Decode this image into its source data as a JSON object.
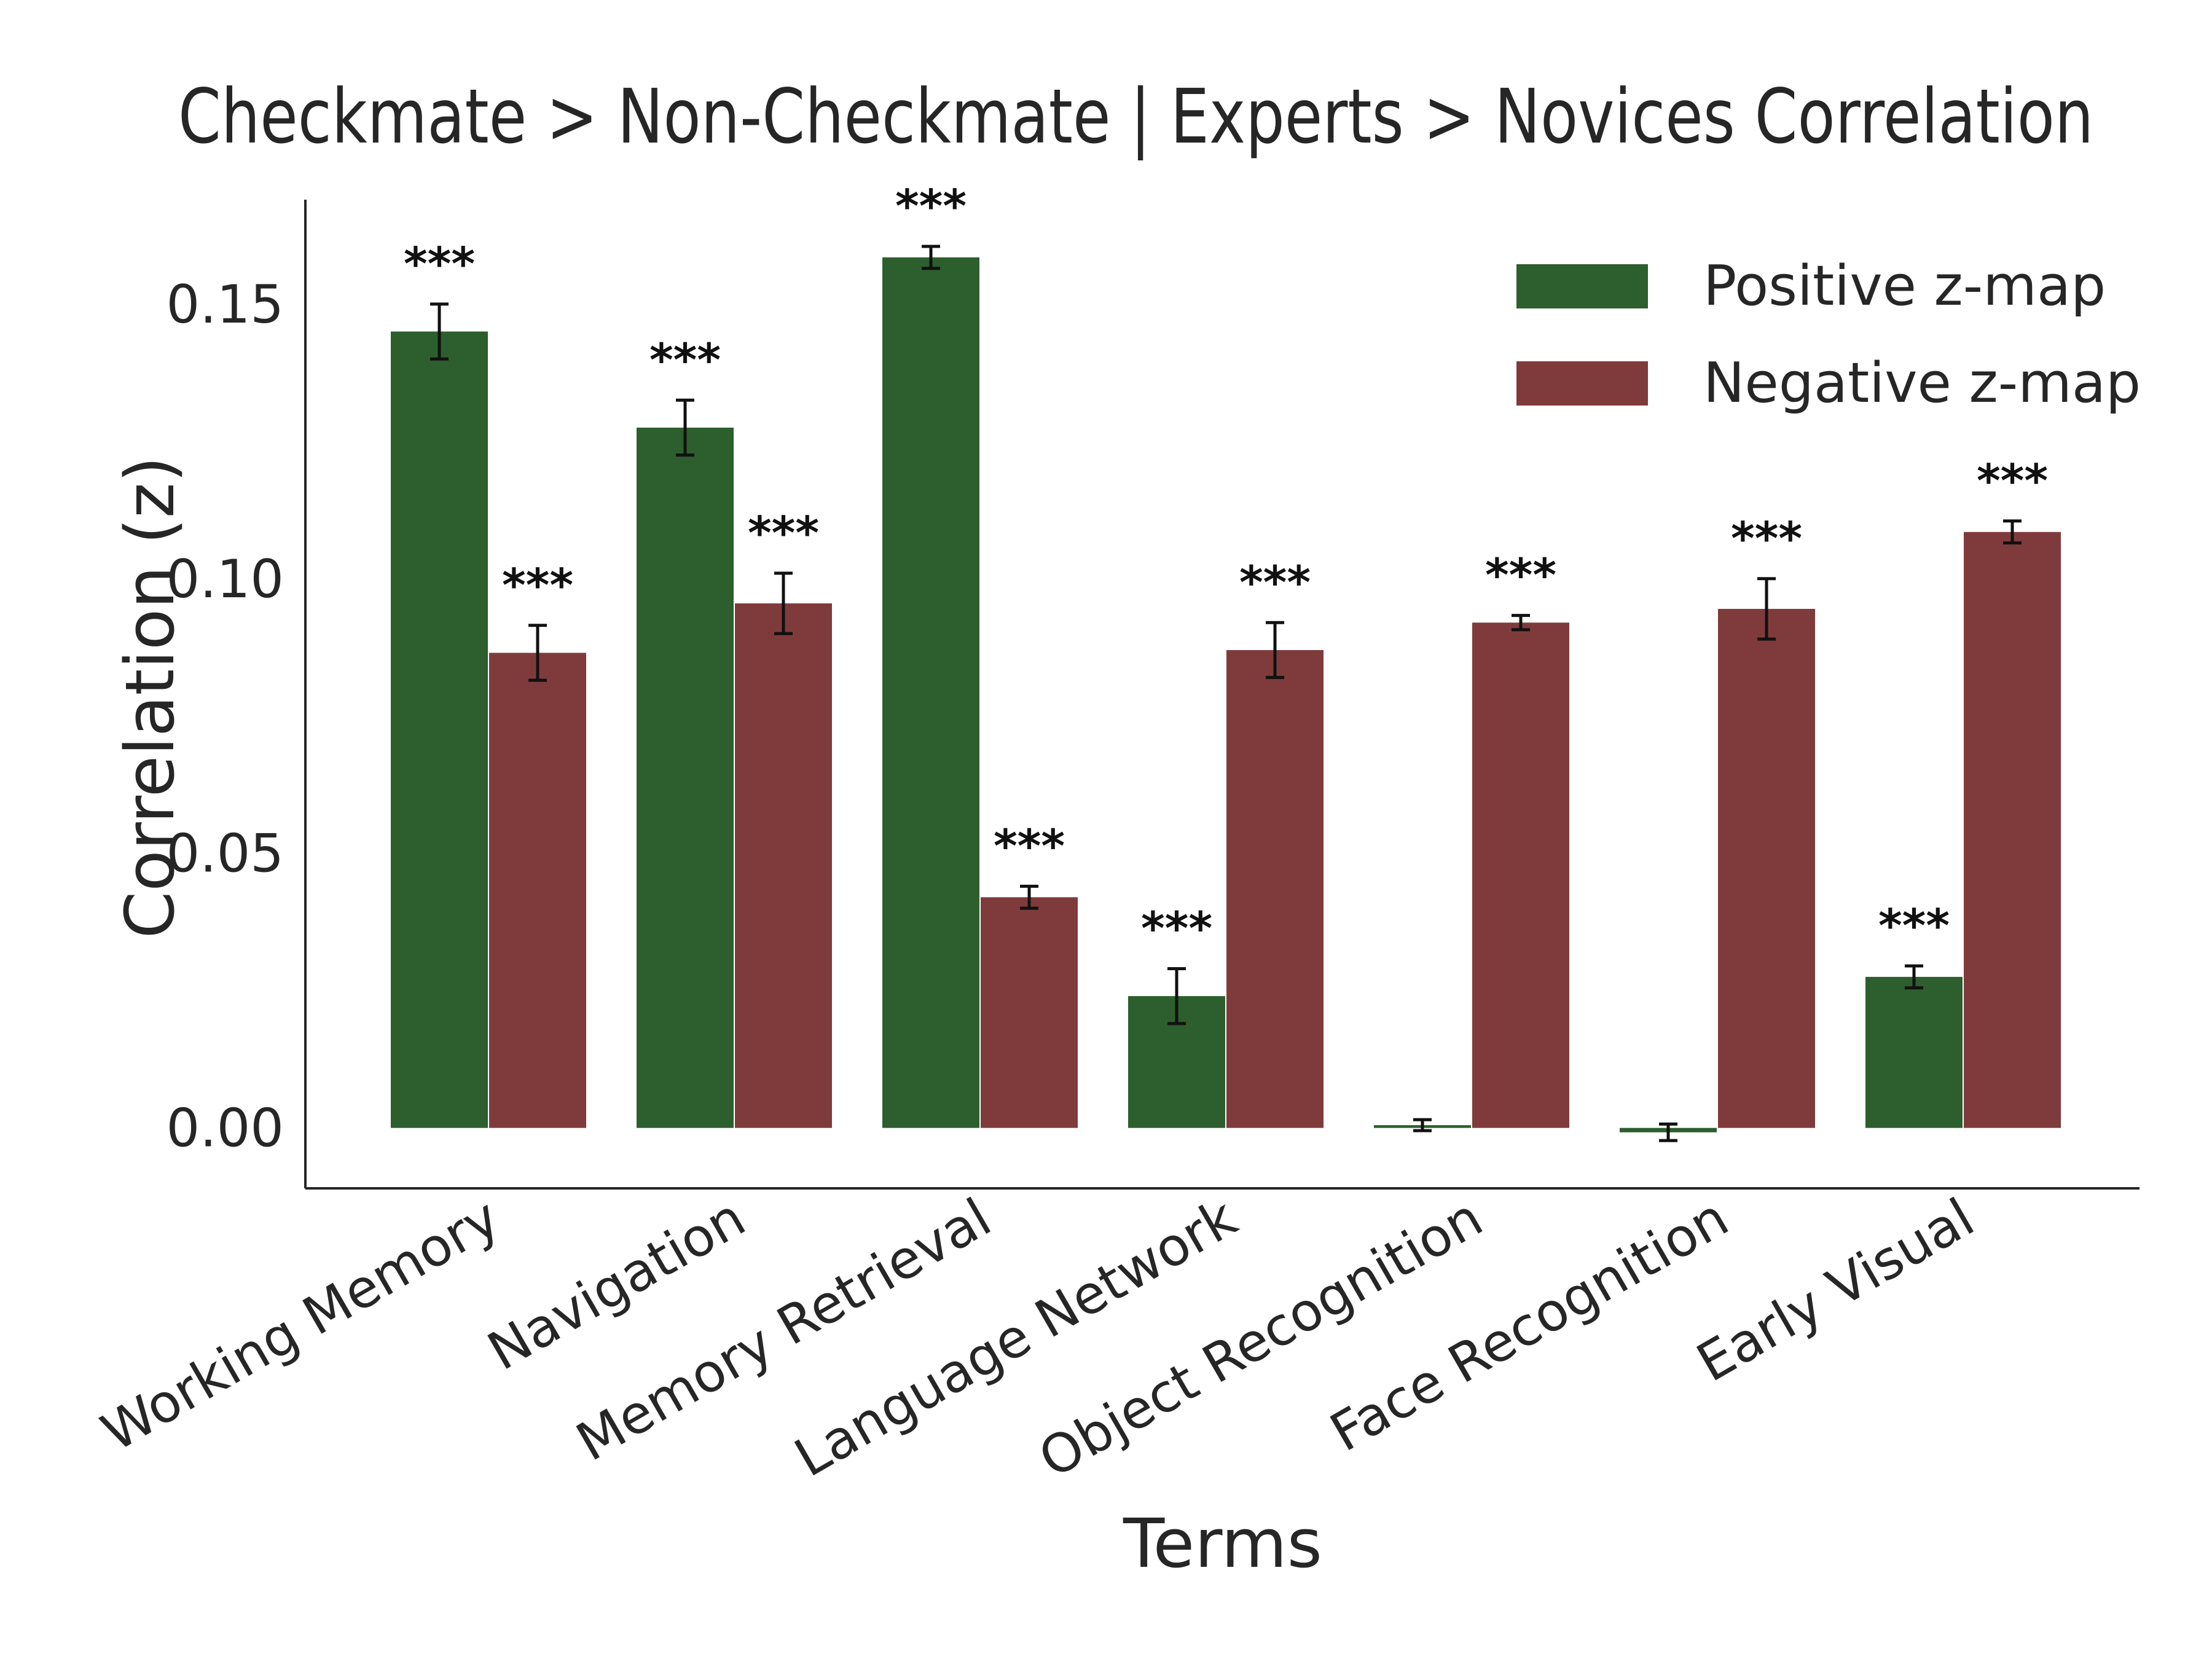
{
  "chart_data": {
    "type": "bar",
    "title": "Checkmate > Non-Checkmate | Experts > Novices Correlation",
    "xlabel": "Terms",
    "ylabel": "Correlation (z)",
    "categories": [
      "Working Memory",
      "Navigation",
      "Memory Retrieval",
      "Language Network",
      "Object Recognition",
      "Face Recognition",
      "Early Visual"
    ],
    "ylim": [
      -0.011,
      0.169
    ],
    "yticks": [
      "0.00",
      "0.05",
      "0.10",
      "0.15"
    ],
    "grid": false,
    "legend_position": "top-right",
    "series": [
      {
        "name": "Positive z-map",
        "color": "#2c5f2d",
        "values": [
          0.145,
          0.1275,
          0.1585,
          0.024,
          0.0005,
          -0.0008,
          0.0275
        ],
        "errors": [
          0.005,
          0.005,
          0.002,
          0.005,
          0.001,
          0.0015,
          0.002
        ],
        "significance": [
          "***",
          "***",
          "***",
          "***",
          "",
          "",
          "***"
        ]
      },
      {
        "name": "Negative z-map",
        "color": "#7f3b3b",
        "values": [
          0.0865,
          0.0955,
          0.042,
          0.087,
          0.092,
          0.0945,
          0.1085
        ],
        "errors": [
          0.005,
          0.0055,
          0.002,
          0.005,
          0.0013,
          0.0055,
          0.002
        ],
        "significance": [
          "***",
          "***",
          "***",
          "***",
          "***",
          "***",
          "***"
        ]
      }
    ]
  }
}
